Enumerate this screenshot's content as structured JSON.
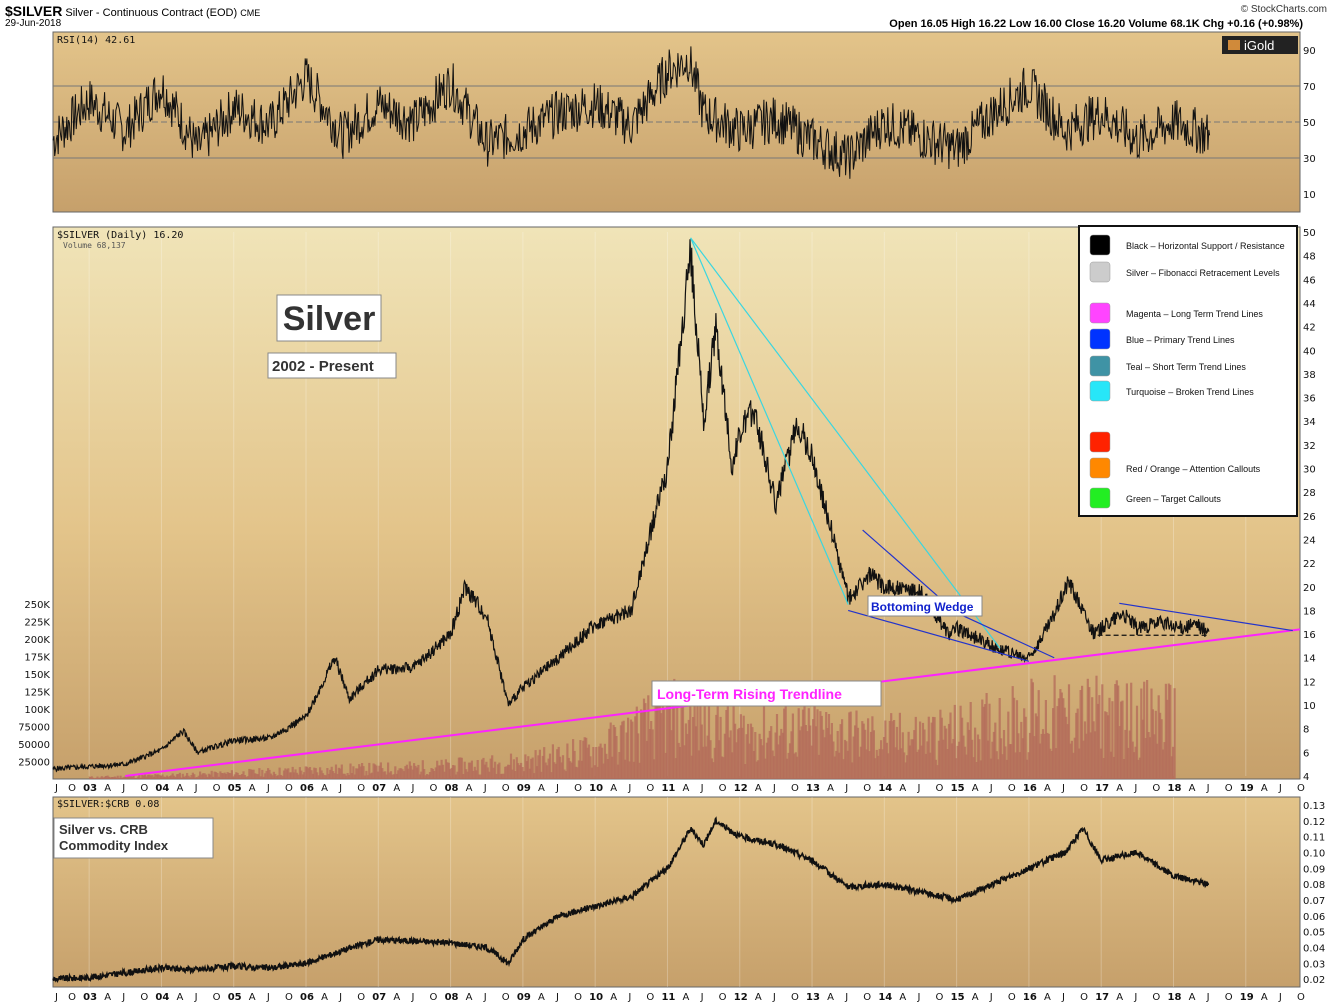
{
  "header": {
    "symbol": "$SILVER",
    "description": "Silver - Continuous Contract (EOD)",
    "exchange": "CME",
    "date": "29-Jun-2018",
    "source": "© StockCharts.com",
    "ohlc": "Open 16.05  High 16.22  Low 16.00  Close 16.20  Volume 68.1K  Chg +0.16 (+0.98%)",
    "brand": "iGold"
  },
  "chart_data": [
    {
      "type": "line",
      "title": "RSI(14) 42.61",
      "ylim": [
        0,
        100
      ],
      "yticks": [
        10,
        30,
        50,
        70,
        90
      ],
      "ref_lines": [
        30,
        50,
        70
      ],
      "x": [
        2002.5,
        2003.0,
        2003.5,
        2004.0,
        2004.5,
        2005.0,
        2005.5,
        2006.0,
        2006.5,
        2007.0,
        2007.5,
        2008.0,
        2008.5,
        2009.0,
        2009.5,
        2010.0,
        2010.5,
        2011.0,
        2011.3,
        2011.5,
        2012.0,
        2012.5,
        2013.0,
        2013.5,
        2014.0,
        2014.5,
        2015.0,
        2015.5,
        2016.0,
        2016.5,
        2017.0,
        2017.5,
        2018.0,
        2018.5
      ],
      "values": [
        40,
        62,
        45,
        70,
        35,
        58,
        48,
        75,
        42,
        60,
        50,
        72,
        38,
        45,
        55,
        60,
        48,
        78,
        85,
        55,
        45,
        52,
        40,
        30,
        50,
        42,
        35,
        55,
        70,
        45,
        55,
        40,
        50,
        42.61
      ]
    },
    {
      "type": "line",
      "title": "$SILVER (Daily) 16.20",
      "subtitle": "Volume 68,137",
      "ylim": [
        4,
        50
      ],
      "yticks": [
        4,
        6,
        8,
        10,
        12,
        14,
        16,
        18,
        20,
        22,
        24,
        26,
        28,
        30,
        32,
        34,
        36,
        38,
        40,
        42,
        44,
        46,
        48,
        50
      ],
      "volume_ticks": [
        "25000",
        "50000",
        "75000",
        "100K",
        "125K",
        "150K",
        "175K",
        "200K",
        "225K",
        "250K"
      ],
      "volume_tick_values": [
        25000,
        50000,
        75000,
        100000,
        125000,
        150000,
        175000,
        200000,
        225000,
        250000
      ],
      "x": [
        2002.5,
        2003.0,
        2003.5,
        2004.0,
        2004.3,
        2004.5,
        2005.0,
        2005.5,
        2006.0,
        2006.4,
        2006.6,
        2007.0,
        2007.5,
        2008.0,
        2008.2,
        2008.5,
        2008.8,
        2009.0,
        2009.5,
        2010.0,
        2010.5,
        2010.9,
        2011.0,
        2011.32,
        2011.5,
        2011.67,
        2011.9,
        2012.0,
        2012.2,
        2012.5,
        2012.8,
        2013.0,
        2013.3,
        2013.5,
        2013.8,
        2014.0,
        2014.5,
        2014.9,
        2015.0,
        2015.5,
        2015.9,
        2016.0,
        2016.3,
        2016.55,
        2016.9,
        2017.0,
        2017.3,
        2017.5,
        2017.9,
        2018.0,
        2018.3,
        2018.49
      ],
      "values": [
        4.6,
        4.8,
        5.0,
        6.2,
        7.8,
        6.0,
        7.0,
        7.2,
        9.0,
        14.0,
        10.5,
        13.0,
        13.2,
        16.0,
        20.0,
        17.5,
        10.0,
        11.5,
        14.0,
        16.8,
        18.0,
        28.0,
        30.0,
        48.5,
        34.0,
        42.0,
        30.0,
        33.0,
        35.0,
        27.0,
        34.0,
        31.0,
        24.0,
        19.0,
        21.0,
        20.0,
        19.5,
        16.0,
        16.5,
        15.0,
        14.0,
        14.0,
        17.0,
        20.5,
        16.0,
        16.5,
        17.8,
        16.5,
        17.0,
        16.5,
        16.8,
        16.2
      ],
      "volume_x": [
        2003,
        2004,
        2005,
        2006,
        2007,
        2008,
        2009,
        2010,
        2011,
        2012,
        2013,
        2014,
        2015,
        2016,
        2017,
        2018
      ],
      "volume_values": [
        3000,
        6000,
        10000,
        15000,
        18000,
        22000,
        30000,
        50000,
        110000,
        80000,
        85000,
        70000,
        80000,
        110000,
        110000,
        105000
      ],
      "annotations": [
        {
          "text": "Silver",
          "kind": "box"
        },
        {
          "text": "2002 - Present",
          "kind": "box"
        },
        {
          "text": "Bottoming Wedge",
          "kind": "box-blue"
        },
        {
          "text": "Long-Term Rising Trendline",
          "kind": "box-magenta"
        }
      ],
      "trendlines": [
        {
          "color": "#ff22ff",
          "x": [
            2003.5,
            2019.75
          ],
          "y": [
            4.0,
            16.4
          ]
        },
        {
          "color": "#3ad6e0",
          "x": [
            2011.32,
            2013.5
          ],
          "y": [
            49.5,
            18.5
          ]
        },
        {
          "color": "#3ad6e0",
          "x": [
            2011.32,
            2015.6
          ],
          "y": [
            49.5,
            14.8
          ]
        },
        {
          "color": "#2233cc",
          "x": [
            2013.7,
            2015.0
          ],
          "y": [
            24.8,
            17.8
          ]
        },
        {
          "color": "#2233cc",
          "x": [
            2013.5,
            2016.0
          ],
          "y": [
            18.0,
            13.7
          ]
        },
        {
          "color": "#2233cc",
          "x": [
            2015.0,
            2016.35
          ],
          "y": [
            17.8,
            14.0
          ]
        },
        {
          "color": "#2233cc",
          "x": [
            2017.25,
            2019.65
          ],
          "y": [
            18.6,
            16.3
          ]
        },
        {
          "color": "#111111",
          "x": [
            2016.95,
            2018.5
          ],
          "y": [
            15.9,
            15.9
          ],
          "dashed": true
        }
      ]
    },
    {
      "type": "line",
      "title": "$SILVER:$CRB 0.08",
      "ylim": [
        0.015,
        0.135
      ],
      "yticks": [
        0.02,
        0.03,
        0.04,
        0.05,
        0.06,
        0.07,
        0.08,
        0.09,
        0.1,
        0.11,
        0.12,
        0.13
      ],
      "ytick_labels": [
        "0.02",
        "0.03",
        "0.04",
        "0.05",
        "0.06",
        "0.07",
        "0.08",
        "0.09",
        "0.10",
        "0.11",
        "0.12",
        "0.13"
      ],
      "x": [
        2002.5,
        2003.0,
        2003.5,
        2004.0,
        2004.5,
        2005.0,
        2005.5,
        2006.0,
        2006.5,
        2007.0,
        2007.5,
        2008.0,
        2008.5,
        2008.8,
        2009.0,
        2009.5,
        2010.0,
        2010.5,
        2011.0,
        2011.32,
        2011.5,
        2011.67,
        2012.0,
        2012.5,
        2013.0,
        2013.5,
        2014.0,
        2014.5,
        2015.0,
        2015.5,
        2016.0,
        2016.5,
        2016.75,
        2017.0,
        2017.5,
        2018.0,
        2018.49
      ],
      "values": [
        0.02,
        0.021,
        0.024,
        0.027,
        0.026,
        0.028,
        0.027,
        0.03,
        0.038,
        0.045,
        0.044,
        0.043,
        0.04,
        0.03,
        0.045,
        0.06,
        0.066,
        0.072,
        0.09,
        0.115,
        0.105,
        0.12,
        0.11,
        0.105,
        0.095,
        0.078,
        0.08,
        0.075,
        0.07,
        0.08,
        0.09,
        0.1,
        0.115,
        0.095,
        0.1,
        0.085,
        0.08
      ],
      "annotations": [
        {
          "text": "Silver vs. CRB",
          "kind": "box"
        },
        {
          "text": "Commodity Index",
          "kind": "box"
        }
      ]
    }
  ],
  "x_axis": {
    "year_labels": [
      "03",
      "04",
      "05",
      "06",
      "07",
      "08",
      "09",
      "10",
      "11",
      "12",
      "13",
      "14",
      "15",
      "16",
      "17",
      "18",
      "19"
    ],
    "month_labels": [
      "J",
      "O",
      "A",
      "J",
      "O"
    ],
    "xlim": [
      2002.5,
      2019.75
    ]
  },
  "legend": {
    "placement": "right",
    "items": [
      {
        "color": "#000000",
        "label": "Black – Horizontal Support / Resistance"
      },
      {
        "color": "#cccccc",
        "label": "Silver – Fibonacci Retracement Levels"
      },
      {
        "color": "#ff44ff",
        "label": "Magenta – Long Term Trend Lines"
      },
      {
        "color": "#0033ff",
        "label": "Blue – Primary Trend Lines"
      },
      {
        "color": "#3f93a5",
        "label": "Teal – Short Term Trend Lines"
      },
      {
        "color": "#27e6f8",
        "label": "Turquoise – Broken Trend Lines"
      },
      {
        "color": "#ff2200",
        "label": ""
      },
      {
        "color": "#ff8800",
        "label": "Red / Orange – Attention Callouts"
      },
      {
        "color": "#22ee22",
        "label": "Green – Target Callouts"
      }
    ]
  },
  "colors": {
    "panel_top": "#f0e4b8",
    "panel_mid": "#e3c48a",
    "panel_bot": "#c6a06b",
    "price_up": "#111111",
    "price_down": "#d42040",
    "volume": "#b36a5a"
  }
}
